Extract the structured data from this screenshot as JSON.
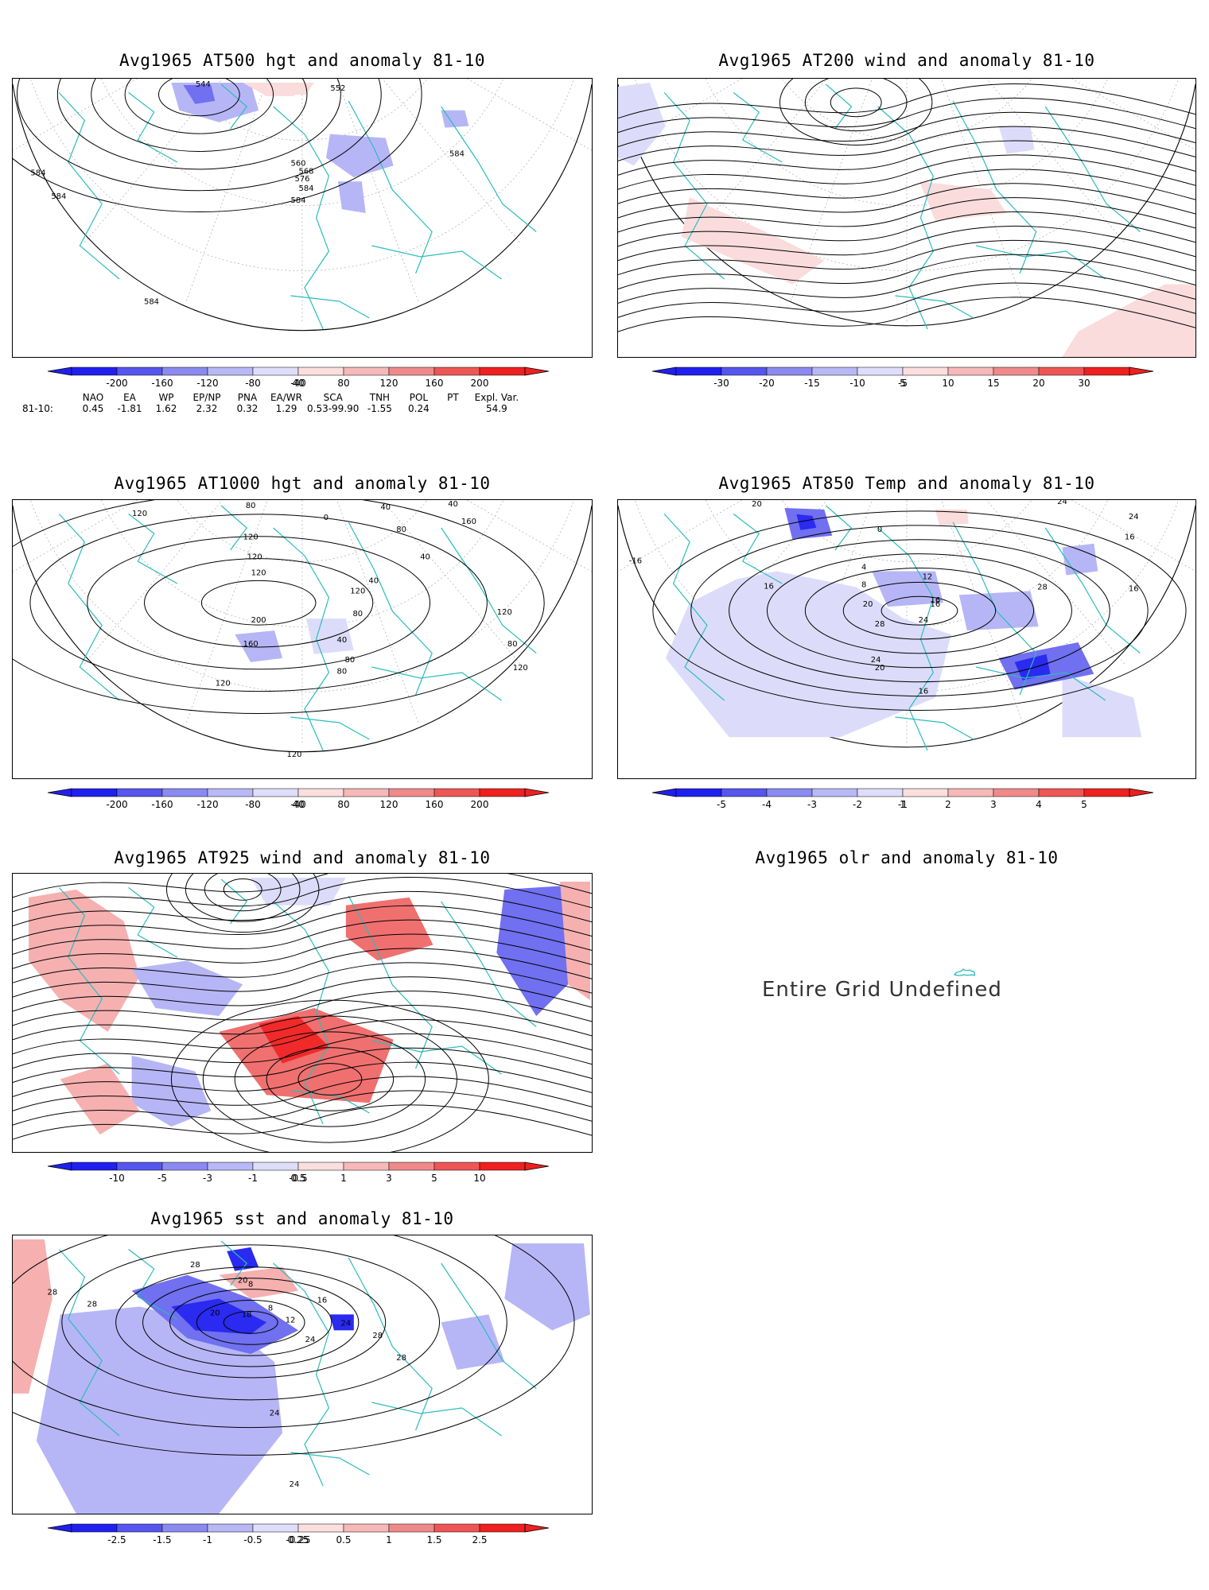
{
  "panels": [
    {
      "key": "p500",
      "title": "Avg1965 AT500 hgt and anomaly 81-10",
      "labels": [
        "544",
        "552",
        "560",
        "568",
        "576",
        "584",
        "584",
        "584",
        "584",
        "584",
        "584"
      ],
      "colorbar": {
        "ticks": [
          "-200",
          "-160",
          "-120",
          "-80",
          "-40",
          "40",
          "80",
          "120",
          "160",
          "200"
        ]
      }
    },
    {
      "key": "p200",
      "title": "Avg1965 AT200 wind and anomaly 81-10",
      "colorbar": {
        "ticks": [
          "-30",
          "-20",
          "-15",
          "-10",
          "-5",
          "5",
          "10",
          "15",
          "20",
          "30"
        ]
      }
    },
    {
      "key": "p1000",
      "title": "Avg1965 AT1000 hgt and anomaly 81-10",
      "labels": [
        "80",
        "40",
        "40",
        "120",
        "120",
        "0",
        "160",
        "80",
        "120",
        "120",
        "40",
        "40",
        "120",
        "200",
        "80",
        "40",
        "80",
        "160",
        "120",
        "80",
        "120",
        "80",
        "120",
        "120"
      ],
      "colorbar": {
        "ticks": [
          "-200",
          "-160",
          "-120",
          "-80",
          "-40",
          "40",
          "80",
          "120",
          "160",
          "200"
        ]
      }
    },
    {
      "key": "p850",
      "title": "Avg1965 AT850 Temp and anomaly 81-10",
      "labels": [
        "20",
        "0",
        "24",
        "24",
        "16",
        "-16",
        "16",
        "4",
        "8",
        "12",
        "16",
        "28",
        "20",
        "16",
        "28",
        "24",
        "24",
        "20",
        "16",
        "16"
      ],
      "colorbar": {
        "ticks": [
          "-5",
          "-4",
          "-3",
          "-2",
          "-1",
          "1",
          "2",
          "3",
          "4",
          "5"
        ]
      }
    },
    {
      "key": "p925",
      "title": "Avg1965 AT925 wind and anomaly 81-10",
      "colorbar": {
        "ticks": [
          "-10",
          "-5",
          "-3",
          "-1",
          "-0.5",
          "0.5",
          "1",
          "3",
          "5",
          "10"
        ]
      }
    },
    {
      "key": "polr",
      "title": "Avg1965 olr and anomaly 81-10",
      "undefined_text": "Entire Grid Undefined"
    },
    {
      "key": "psst",
      "title": "Avg1965 sst and anomaly 81-10",
      "labels": [
        "28",
        "28",
        "28",
        "20",
        "8",
        "8",
        "12",
        "16",
        "18",
        "20",
        "24",
        "24",
        "28",
        "28",
        "24",
        "24"
      ],
      "colorbar": {
        "ticks": [
          "-2.5",
          "-1.5",
          "-1",
          "-0.5",
          "-0.25",
          "0.25",
          "0.5",
          "1",
          "1.5",
          "2.5"
        ]
      }
    }
  ],
  "indices": {
    "headers": [
      "NAO",
      "EA",
      "WP",
      "EP/NP",
      "PNA",
      "EA/WR",
      "SCA",
      "TNH",
      "POL",
      "PT",
      "Expl. Var."
    ],
    "row_label": "81-10:",
    "values": [
      "0.45",
      "-1.81",
      "1.62",
      "2.32",
      "0.32",
      "1.29",
      "0.53-99.90",
      "-1.55",
      "0.24",
      "",
      "54.9"
    ]
  },
  "colors": {
    "coast": "#2bbcbc",
    "cold3": "#2a2af0",
    "cold2": "#7070f0",
    "cold1": "#b6b6f6",
    "cold0": "#dcdcfa",
    "warm0": "#fadcdc",
    "warm1": "#f6b0b0",
    "warm2": "#f07070",
    "warm3": "#f02a2a"
  }
}
